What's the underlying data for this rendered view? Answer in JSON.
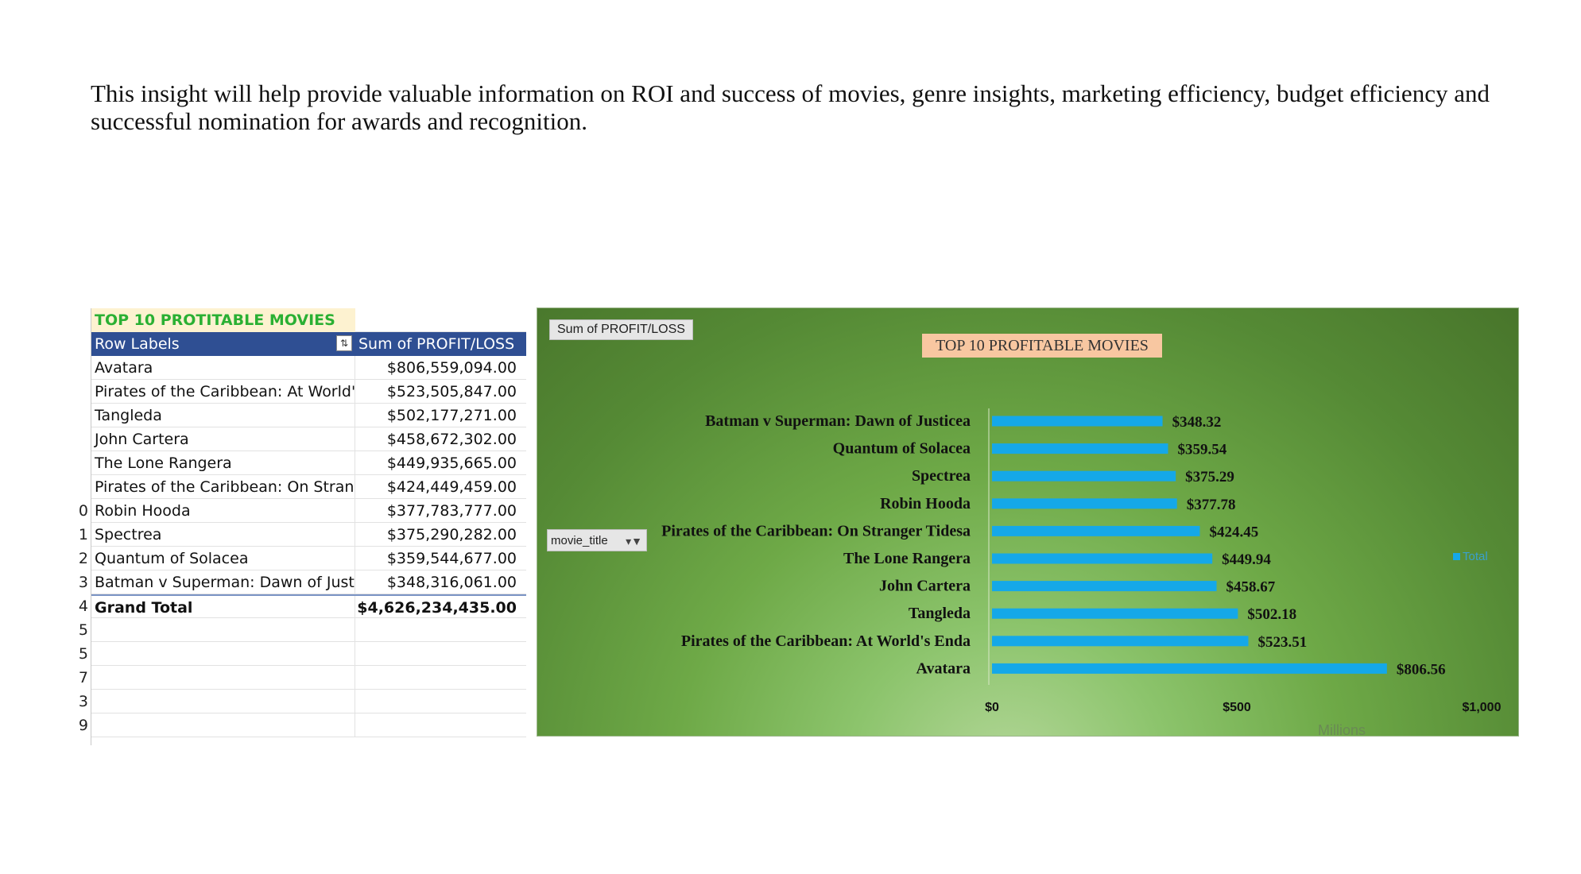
{
  "intro_text": "This insight will help provide valuable information on ROI and success of movies, genre insights, marketing efficiency, budget efficiency and successful nomination for awards and recognition.",
  "sheet": {
    "title": "TOP 10 PROTITABLE MOVIES",
    "header": {
      "row_labels": "Row Labels",
      "sum": "Sum of PROFIT/LOSS"
    },
    "row_numbers_partial": [
      "",
      "",
      "",
      "",
      "",
      "",
      "",
      "",
      "",
      "",
      "",
      "",
      "",
      "",
      "",
      "",
      "",
      ""
    ],
    "rows": [
      {
        "n": "",
        "label": "Avatara",
        "value": "$806,559,094.00"
      },
      {
        "n": "",
        "label": "Pirates of the Caribbean: At World'",
        "value": "$523,505,847.00"
      },
      {
        "n": "",
        "label": "Tangleda",
        "value": "$502,177,271.00"
      },
      {
        "n": "",
        "label": "John Cartera",
        "value": "$458,672,302.00"
      },
      {
        "n": "",
        "label": "The Lone Rangera",
        "value": "$449,935,665.00"
      },
      {
        "n": "",
        "label": "Pirates of the Caribbean: On Strang",
        "value": "$424,449,459.00"
      },
      {
        "n": "0",
        "label": "Robin Hooda",
        "value": "$377,783,777.00"
      },
      {
        "n": "1",
        "label": "Spectrea",
        "value": "$375,290,282.00"
      },
      {
        "n": "2",
        "label": "Quantum of Solacea",
        "value": "$359,544,677.00"
      },
      {
        "n": "3",
        "label": "Batman v Superman: Dawn of Justi",
        "value": "$348,316,061.00"
      }
    ],
    "grand_total": {
      "n": "4",
      "label": "Grand Total",
      "value": "$4,626,234,435.00"
    },
    "empty_row_numbers": [
      "5",
      "5",
      "7",
      "3",
      "9"
    ]
  },
  "chart_data": {
    "type": "bar",
    "orientation": "horizontal",
    "title": "TOP 10  PROFITABLE MOVIES",
    "field_buttons": {
      "values": "Sum of PROFIT/LOSS",
      "axis": "movie_title"
    },
    "categories": [
      "Batman v Superman: Dawn of Justicea",
      "Quantum of Solacea",
      "Spectrea",
      "Robin Hooda",
      "Pirates of the Caribbean: On Stranger Tidesa",
      "The Lone Rangera",
      "John Cartera",
      "Tangleda",
      "Pirates of the Caribbean: At World's Enda",
      "Avatara"
    ],
    "values": [
      348.32,
      359.54,
      375.29,
      377.78,
      424.45,
      449.94,
      458.67,
      502.18,
      523.51,
      806.56
    ],
    "data_labels": [
      "$348.32",
      "$359.54",
      "$375.29",
      "$377.78",
      "$424.45",
      "$449.94",
      "$458.67",
      "$502.18",
      "$523.51",
      "$806.56"
    ],
    "xlim": [
      0,
      1000
    ],
    "x_ticks": [
      0,
      500,
      1000
    ],
    "x_tick_labels": [
      "$0",
      "$500",
      "$1,000"
    ],
    "xlabel": "Millions",
    "legend": {
      "entry": "Total",
      "placement": "right"
    },
    "bar_color": "#15a8e8",
    "grid": false
  }
}
